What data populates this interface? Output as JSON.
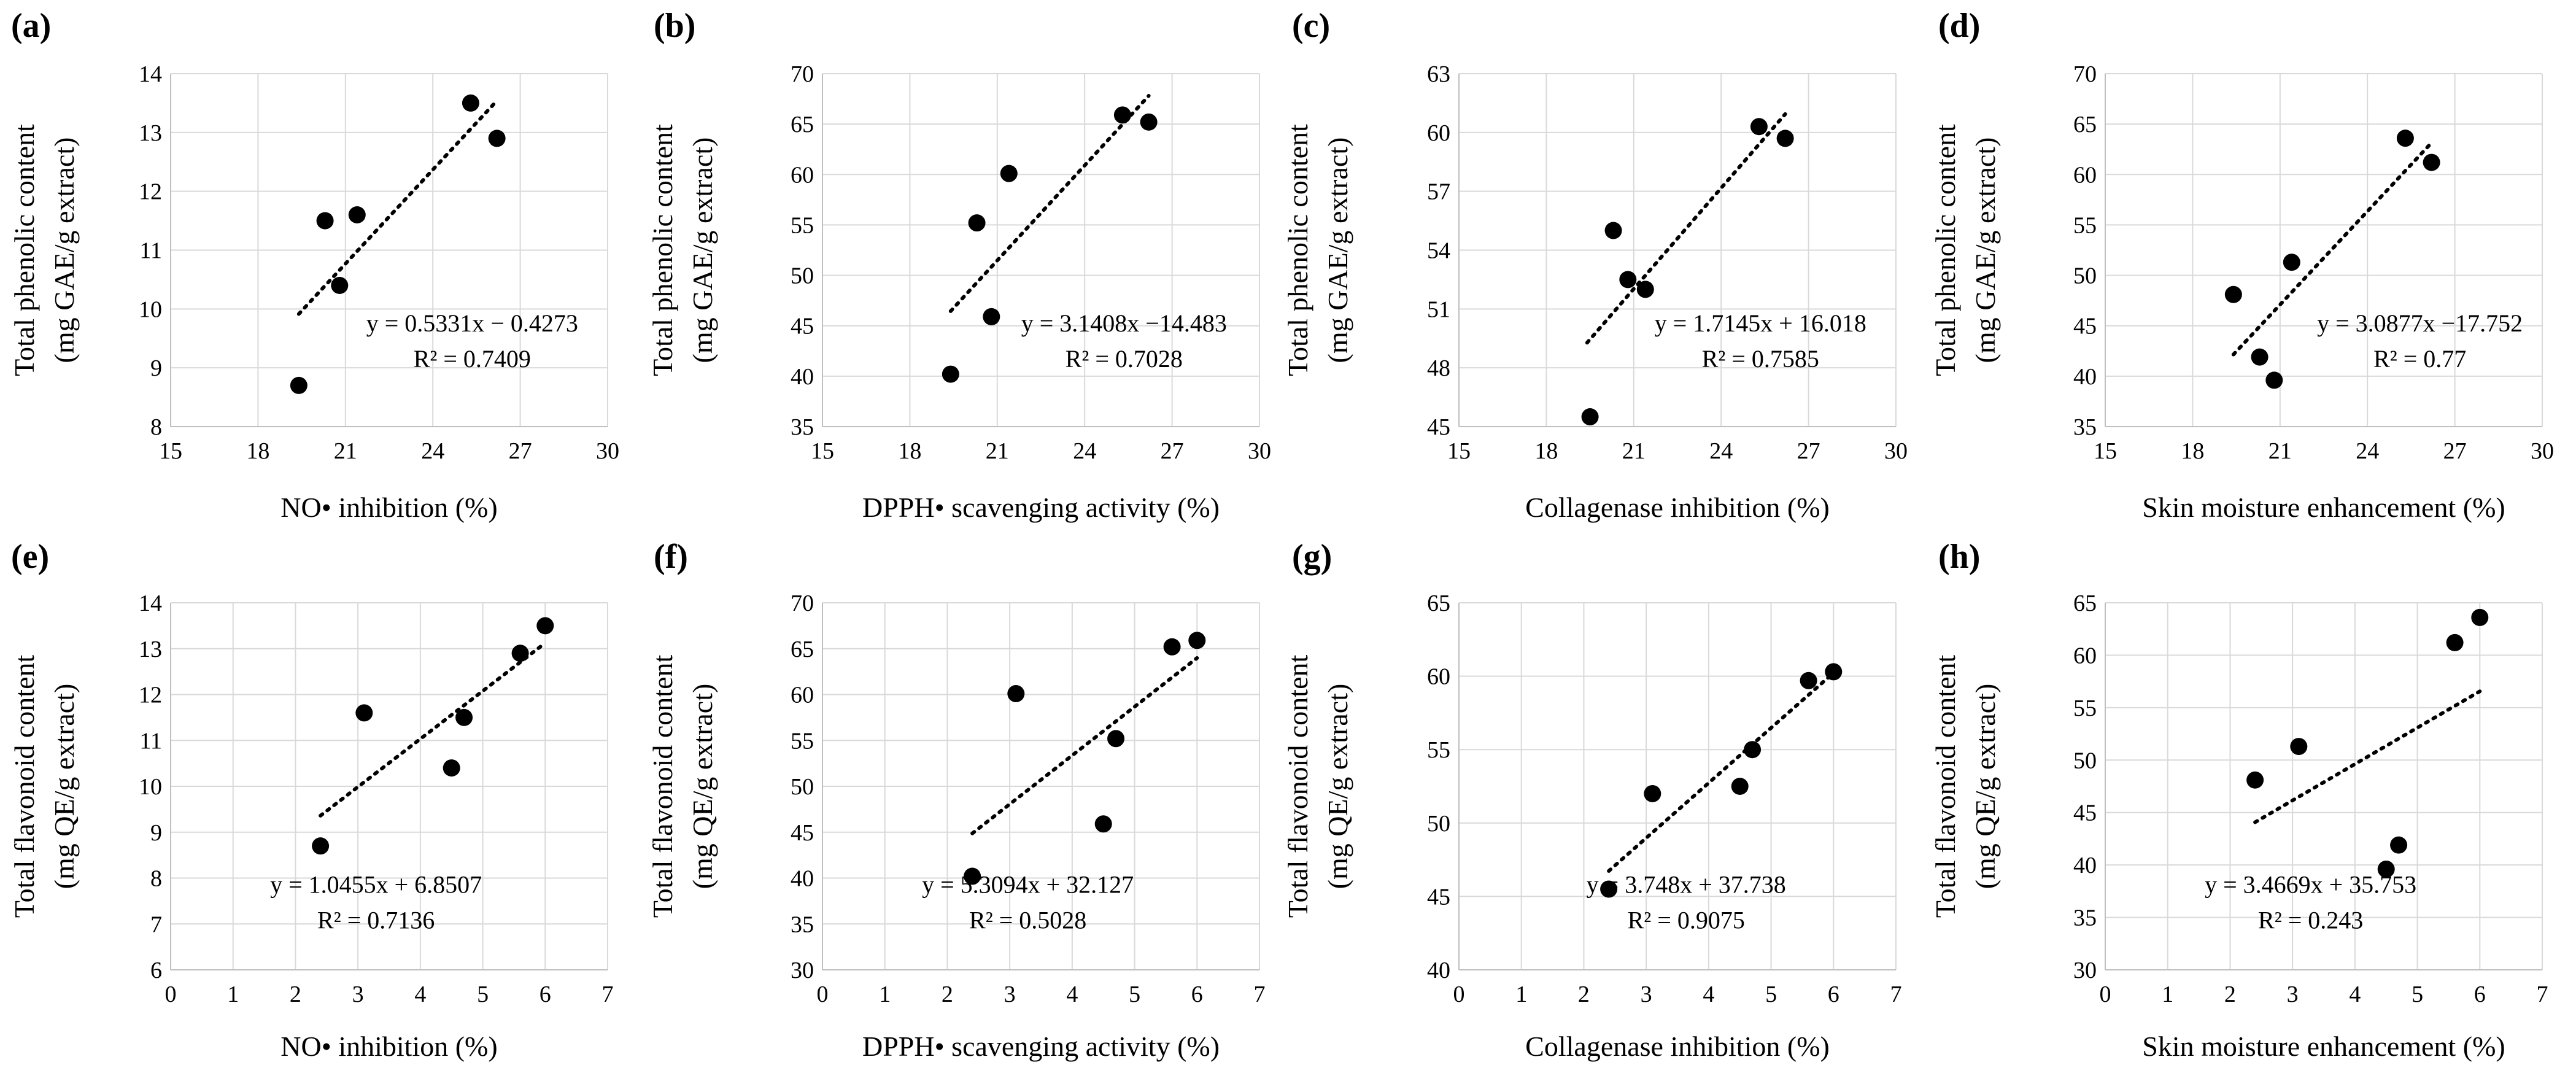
{
  "chart_data": [
    {
      "type": "scatter",
      "panel": "(a)",
      "xlabel": "NO• inhibition (%)",
      "ylabel": [
        "Total phenolic content",
        "(mg GAE/g extract)"
      ],
      "xlim": [
        15,
        30
      ],
      "xticks": [
        15,
        18,
        21,
        24,
        27,
        30
      ],
      "ylim": [
        8,
        14
      ],
      "yticks": [
        8,
        9,
        10,
        11,
        12,
        13,
        14
      ],
      "points": [
        [
          19.4,
          8.7
        ],
        [
          20.3,
          11.5
        ],
        [
          20.8,
          10.4
        ],
        [
          21.4,
          11.6
        ],
        [
          25.3,
          13.5
        ],
        [
          26.2,
          12.9
        ]
      ],
      "trendline": {
        "slope": 0.5331,
        "intercept": -0.4273,
        "x_range": [
          19.4,
          26.2
        ]
      },
      "equation": "y = 0.5331x − 0.4273",
      "r2": "R² = 0.7409"
    },
    {
      "type": "scatter",
      "panel": "(b)",
      "xlabel": "DPPH• scavenging activity (%)",
      "ylabel": [
        "Total phenolic content",
        "(mg GAE/g extract)"
      ],
      "xlim": [
        15,
        30
      ],
      "xticks": [
        15,
        18,
        21,
        24,
        27,
        30
      ],
      "ylim": [
        35,
        70
      ],
      "yticks": [
        35,
        40,
        45,
        50,
        55,
        60,
        65,
        70
      ],
      "points": [
        [
          19.4,
          40.2
        ],
        [
          20.3,
          55.2
        ],
        [
          20.8,
          45.9
        ],
        [
          21.4,
          60.1
        ],
        [
          25.3,
          65.9
        ],
        [
          26.2,
          65.2
        ]
      ],
      "trendline": {
        "slope": 3.1408,
        "intercept": -14.483,
        "x_range": [
          19.4,
          26.2
        ]
      },
      "equation": "y = 3.1408x −14.483",
      "r2": "R² = 0.7028"
    },
    {
      "type": "scatter",
      "panel": "(c)",
      "xlabel": "Collagenase inhibition (%)",
      "ylabel": [
        "Total phenolic content",
        "(mg GAE/g extract)"
      ],
      "xlim": [
        15,
        30
      ],
      "xticks": [
        15,
        18,
        21,
        24,
        27,
        30
      ],
      "ylim": [
        45,
        63
      ],
      "yticks": [
        45,
        48,
        51,
        54,
        57,
        60,
        63
      ],
      "points": [
        [
          19.5,
          45.5
        ],
        [
          20.3,
          55.0
        ],
        [
          20.8,
          52.5
        ],
        [
          21.4,
          52.0
        ],
        [
          25.3,
          60.3
        ],
        [
          26.2,
          59.7
        ]
      ],
      "trendline": {
        "slope": 1.7145,
        "intercept": 16.018,
        "x_range": [
          19.4,
          26.2
        ]
      },
      "equation": "y = 1.7145x + 16.018",
      "r2": "R² = 0.7585"
    },
    {
      "type": "scatter",
      "panel": "(d)",
      "xlabel": "Skin moisture enhancement (%)",
      "ylabel": [
        "Total phenolic content",
        "(mg GAE/g extract)"
      ],
      "xlim": [
        15,
        30
      ],
      "xticks": [
        15,
        18,
        21,
        24,
        27,
        30
      ],
      "ylim": [
        35,
        70
      ],
      "yticks": [
        35,
        40,
        45,
        50,
        55,
        60,
        65,
        70
      ],
      "points": [
        [
          19.4,
          48.1
        ],
        [
          20.3,
          41.9
        ],
        [
          20.8,
          39.6
        ],
        [
          21.4,
          51.3
        ],
        [
          25.3,
          63.6
        ],
        [
          26.2,
          61.2
        ]
      ],
      "trendline": {
        "slope": 3.0877,
        "intercept": -17.752,
        "x_range": [
          19.4,
          26.2
        ]
      },
      "equation": "y = 3.0877x −17.752",
      "r2": "R² = 0.77"
    },
    {
      "type": "scatter",
      "panel": "(e)",
      "xlabel": "NO• inhibition (%)",
      "ylabel": [
        "Total flavonoid content",
        "(mg QE/g extract)"
      ],
      "xlim": [
        0,
        7
      ],
      "xticks": [
        0,
        1,
        2,
        3,
        4,
        5,
        6,
        7
      ],
      "ylim": [
        6,
        14
      ],
      "yticks": [
        6,
        7,
        8,
        9,
        10,
        11,
        12,
        13,
        14
      ],
      "points": [
        [
          2.4,
          8.7
        ],
        [
          3.1,
          11.6
        ],
        [
          4.5,
          10.4
        ],
        [
          4.7,
          11.5
        ],
        [
          5.6,
          12.9
        ],
        [
          6.0,
          13.5
        ]
      ],
      "trendline": {
        "slope": 1.0455,
        "intercept": 6.8507,
        "x_range": [
          2.4,
          6.0
        ]
      },
      "equation": "y = 1.0455x + 6.8507",
      "r2": "R² = 0.7136"
    },
    {
      "type": "scatter",
      "panel": "(f)",
      "xlabel": "DPPH• scavenging activity (%)",
      "ylabel": [
        "Total flavonoid content",
        "(mg QE/g extract)"
      ],
      "xlim": [
        0,
        7
      ],
      "xticks": [
        0,
        1,
        2,
        3,
        4,
        5,
        6,
        7
      ],
      "ylim": [
        30,
        70
      ],
      "yticks": [
        30,
        35,
        40,
        45,
        50,
        55,
        60,
        65,
        70
      ],
      "points": [
        [
          2.4,
          40.2
        ],
        [
          3.1,
          60.1
        ],
        [
          4.5,
          45.9
        ],
        [
          4.7,
          55.2
        ],
        [
          5.6,
          65.2
        ],
        [
          6.0,
          65.9
        ]
      ],
      "trendline": {
        "slope": 5.3094,
        "intercept": 32.127,
        "x_range": [
          2.4,
          6.0
        ]
      },
      "equation": "y = 5.3094x + 32.127",
      "r2": "R² = 0.5028"
    },
    {
      "type": "scatter",
      "panel": "(g)",
      "xlabel": "Collagenase inhibition (%)",
      "ylabel": [
        "Total flavonoid content",
        "(mg QE/g extract)"
      ],
      "xlim": [
        0,
        7
      ],
      "xticks": [
        0,
        1,
        2,
        3,
        4,
        5,
        6,
        7
      ],
      "ylim": [
        40,
        65
      ],
      "yticks": [
        40,
        45,
        50,
        55,
        60,
        65
      ],
      "points": [
        [
          2.4,
          45.5
        ],
        [
          3.1,
          52.0
        ],
        [
          4.5,
          52.5
        ],
        [
          4.7,
          55.0
        ],
        [
          5.6,
          59.7
        ],
        [
          6.0,
          60.3
        ]
      ],
      "trendline": {
        "slope": 3.748,
        "intercept": 37.738,
        "x_range": [
          2.4,
          6.0
        ]
      },
      "equation": "y = 3.748x + 37.738",
      "r2": "R² = 0.9075"
    },
    {
      "type": "scatter",
      "panel": "(h)",
      "xlabel": "Skin moisture enhancement (%)",
      "ylabel": [
        "Total flavonoid content",
        "(mg QE/g extract)"
      ],
      "xlim": [
        0,
        7
      ],
      "xticks": [
        0,
        1,
        2,
        3,
        4,
        5,
        6,
        7
      ],
      "ylim": [
        30,
        65
      ],
      "yticks": [
        30,
        35,
        40,
        45,
        50,
        55,
        60,
        65
      ],
      "points": [
        [
          2.4,
          48.1
        ],
        [
          3.1,
          51.3
        ],
        [
          4.5,
          39.6
        ],
        [
          4.7,
          41.9
        ],
        [
          5.6,
          61.2
        ],
        [
          6.0,
          63.6
        ]
      ],
      "trendline": {
        "slope": 3.4669,
        "intercept": 35.753,
        "x_range": [
          2.4,
          6.0
        ]
      },
      "equation": "y = 3.4669x + 35.753",
      "r2": "R² = 0.243"
    }
  ]
}
